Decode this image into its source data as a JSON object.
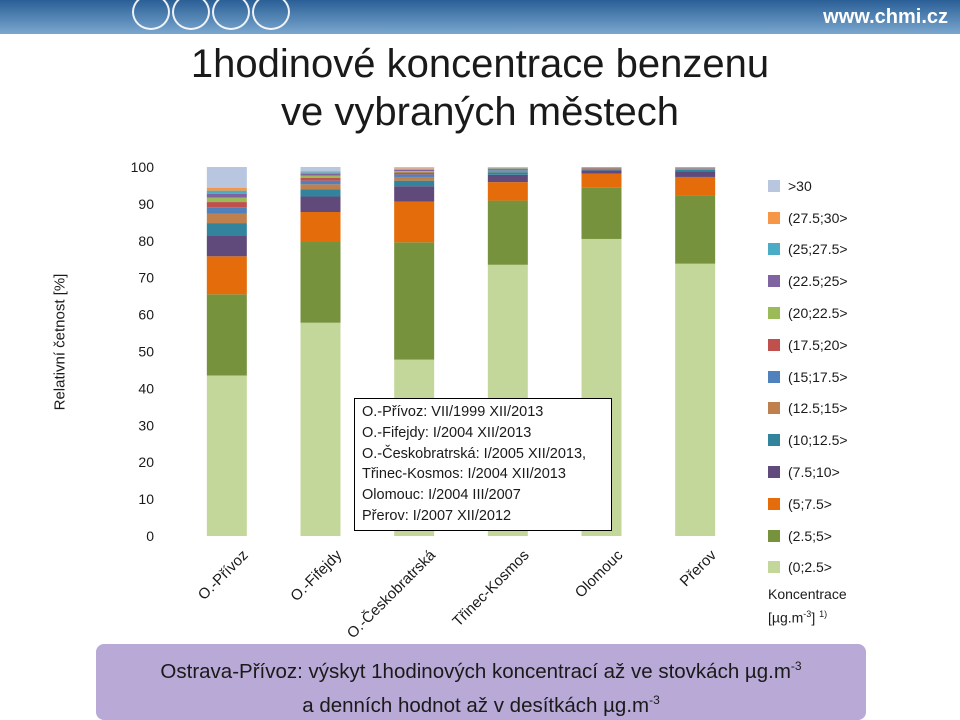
{
  "header": {
    "brand": "www.chmi.cz"
  },
  "title": {
    "line1": "1hodinové koncentrace benzenu",
    "line2": "ve vybraných městech"
  },
  "note_lines": [
    "O.-Přívoz: VII/1999 XII/2013",
    "O.-Fifejdy: I/2004 XII/2013",
    "O.-Českobratrská: I/2005 XII/2013,",
    "Třinec-Kosmos: I/2004 XII/2013",
    "Olomouc: I/2004 III/2007",
    "Přerov: I/2007 XII/2012"
  ],
  "legend_unit": {
    "text": "Koncentrace",
    "unit_prefix": "[µg.m",
    "unit_exp": "-3",
    "unit_suffix": "]",
    "footnote": "1)"
  },
  "banner": {
    "line1_pre": "Ostrava-Přívoz: výskyt 1hodinových koncentrací až ve stovkách µg.m",
    "line1_exp": "-3",
    "line2_pre": "a denních hodnot až v desítkách µg.m",
    "line2_exp": "-3"
  },
  "chart_data": {
    "type": "bar",
    "stacked": true,
    "title": "1hodinové koncentrace benzenu ve vybraných městech",
    "ylabel": "Relativní četnost [%]",
    "ylim": [
      0,
      100
    ],
    "yticks": [
      0,
      10,
      20,
      30,
      40,
      50,
      60,
      70,
      80,
      90,
      100
    ],
    "categories": [
      "O.-Přívoz",
      "O.-Fifejdy",
      "O.-Českobratrská",
      "Třinec-Kosmos",
      "Olomouc",
      "Přerov"
    ],
    "legend_position": "right",
    "series": [
      {
        "name": "(0;2.5>",
        "color": "#c4d79b",
        "values": [
          43.5,
          57.8,
          47.8,
          73.5,
          80.5,
          73.8
        ]
      },
      {
        "name": "(2.5;5>",
        "color": "#76923c",
        "values": [
          22.0,
          22.0,
          31.8,
          17.4,
          14.0,
          18.5
        ]
      },
      {
        "name": "(5;7.5>",
        "color": "#e46c0a",
        "values": [
          10.3,
          8.0,
          11.0,
          5.0,
          3.7,
          5.0
        ]
      },
      {
        "name": "(7.5;10>",
        "color": "#604a7b",
        "values": [
          5.5,
          4.2,
          4.2,
          2.0,
          0.9,
          1.5
        ]
      },
      {
        "name": "(10;12.5>",
        "color": "#31849b",
        "values": [
          3.5,
          2.0,
          1.5,
          0.7,
          0.3,
          0.4
        ]
      },
      {
        "name": "(12.5;15>",
        "color": "#c0804d",
        "values": [
          2.5,
          1.3,
          1.0,
          0.4,
          0.2,
          0.3
        ]
      },
      {
        "name": "(15;17.5>",
        "color": "#4f81bd",
        "values": [
          1.8,
          1.0,
          0.7,
          0.3,
          0.1,
          0.1
        ]
      },
      {
        "name": "(17.5;20>",
        "color": "#c0504d",
        "values": [
          1.4,
          0.8,
          0.5,
          0.2,
          0.1,
          0.1
        ]
      },
      {
        "name": "(20;22.5>",
        "color": "#9bbb59",
        "values": [
          1.2,
          0.6,
          0.4,
          0.1,
          0.1,
          0.1
        ]
      },
      {
        "name": "(22.5;25>",
        "color": "#8064a2",
        "values": [
          1.0,
          0.5,
          0.3,
          0.1,
          0.05,
          0.1
        ]
      },
      {
        "name": "(25;27.5>",
        "color": "#4bacc6",
        "values": [
          0.9,
          0.4,
          0.2,
          0.1,
          0.05,
          0.05
        ]
      },
      {
        "name": "(27.5;30>",
        "color": "#f79646",
        "values": [
          0.8,
          0.3,
          0.2,
          0.1,
          0.05,
          0.05
        ]
      },
      {
        "name": ">30",
        "color": "#b9c6e0",
        "values": [
          5.6,
          1.1,
          0.4,
          0.1,
          0.0,
          0.0
        ]
      }
    ]
  }
}
